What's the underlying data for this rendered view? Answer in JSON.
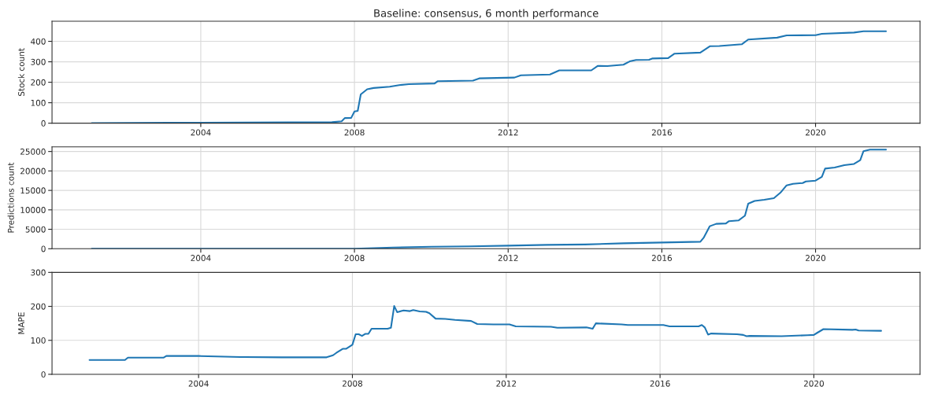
{
  "chart_data": [
    {
      "type": "line",
      "title": "Baseline: consensus, 6 month performance",
      "ylabel": "Stock count",
      "grid": true,
      "xlim": [
        "2000-02-17",
        "2022-09-20"
      ],
      "xticks": [
        "2004",
        "2008",
        "2012",
        "2016",
        "2020"
      ],
      "ylim": [
        0,
        498
      ],
      "yticks": [
        0,
        100,
        200,
        300,
        400
      ],
      "series": [
        {
          "color": "#1f77b4",
          "x": [
            "2001-03",
            "2003-03",
            "2007-06",
            "2007-09",
            "2007-10",
            "2007-12",
            "2008-01",
            "2008-02",
            "2008-03",
            "2008-05",
            "2008-07",
            "2008-12",
            "2009-03",
            "2009-06",
            "2010-02",
            "2010-03",
            "2011-02",
            "2011-04",
            "2012-03",
            "2012-05",
            "2013-02",
            "2013-05",
            "2014-03",
            "2014-05",
            "2014-08",
            "2015-01",
            "2015-03",
            "2015-05",
            "2015-09",
            "2015-10",
            "2016-03",
            "2016-05",
            "2017-01",
            "2017-04",
            "2017-07",
            "2018-02",
            "2018-04",
            "2019-01",
            "2019-04",
            "2020-01",
            "2020-03",
            "2021-01",
            "2021-04",
            "2021-11"
          ],
          "values": [
            0,
            2,
            5,
            9,
            25,
            26,
            57,
            60,
            141,
            166,
            172,
            178,
            186,
            191,
            194,
            205,
            208,
            219,
            223,
            234,
            238,
            258,
            258,
            280,
            279,
            286,
            302,
            309,
            310,
            316,
            318,
            340,
            345,
            376,
            377,
            386,
            409,
            418,
            429,
            430,
            437,
            443,
            449,
            449
          ]
        }
      ]
    },
    {
      "type": "line",
      "ylabel": "Predictions count",
      "grid": true,
      "xlim": [
        "2000-02-17",
        "2022-09-20"
      ],
      "xticks": [
        "2004",
        "2008",
        "2012",
        "2016",
        "2020"
      ],
      "ylim": [
        0,
        26200
      ],
      "yticks": [
        0,
        5000,
        10000,
        15000,
        20000,
        25000
      ],
      "series": [
        {
          "color": "#1f77b4",
          "x": [
            "2001-03",
            "2008-01",
            "2009-01",
            "2010-01",
            "2011-01",
            "2012-01",
            "2013-01",
            "2014-01",
            "2015-01",
            "2016-01",
            "2017-01",
            "2017-02",
            "2017-04",
            "2017-06",
            "2017-09",
            "2017-10",
            "2018-01",
            "2018-03",
            "2018-04",
            "2018-06",
            "2018-09",
            "2018-12",
            "2019-02",
            "2019-04",
            "2019-06",
            "2019-09",
            "2019-10",
            "2020-01",
            "2020-03",
            "2020-04",
            "2020-07",
            "2020-10",
            "2021-01",
            "2021-03",
            "2021-04",
            "2021-06",
            "2021-11"
          ],
          "values": [
            0,
            0,
            300,
            500,
            600,
            800,
            1000,
            1100,
            1400,
            1600,
            1800,
            2800,
            5800,
            6400,
            6500,
            7100,
            7300,
            8500,
            11600,
            12300,
            12600,
            13000,
            14400,
            16300,
            16700,
            16900,
            17300,
            17500,
            18500,
            20600,
            20900,
            21500,
            21800,
            22800,
            25100,
            25500,
            25500
          ]
        }
      ]
    },
    {
      "type": "line",
      "ylabel": "MAPE",
      "grid": true,
      "xlim": [
        "2000-03-10",
        "2022-10-05"
      ],
      "xticks": [
        "2004",
        "2008",
        "2012",
        "2016",
        "2020"
      ],
      "ylim": [
        0,
        300
      ],
      "yticks": [
        0,
        100,
        200,
        300
      ],
      "series": [
        {
          "color": "#1f77b4",
          "x": [
            "2001-03",
            "2002-02",
            "2002-03",
            "2003-02",
            "2003-03",
            "2004-01",
            "2005-02",
            "2005-03",
            "2006-03",
            "2007-05",
            "2007-07",
            "2007-08",
            "2007-10",
            "2007-11",
            "2008-01",
            "2008-02",
            "2008-03",
            "2008-04",
            "2008-05",
            "2008-06",
            "2008-07",
            "2008-12",
            "2009-01",
            "2009-02",
            "2009-03",
            "2009-05",
            "2009-07",
            "2009-08",
            "2009-10",
            "2009-12",
            "2010-01",
            "2010-03",
            "2010-06",
            "2010-09",
            "2011-02",
            "2011-04",
            "2011-09",
            "2012-02",
            "2012-04",
            "2013-03",
            "2013-05",
            "2014-02",
            "2014-04",
            "2014-05",
            "2015-01",
            "2015-03",
            "2016-02",
            "2016-04",
            "2017-01",
            "2017-02",
            "2017-03",
            "2017-04",
            "2017-05",
            "2018-01",
            "2018-03",
            "2018-04",
            "2018-05",
            "2019-03",
            "2019-11",
            "2020-01",
            "2020-02",
            "2020-04",
            "2021-01",
            "2021-02",
            "2021-03",
            "2021-10"
          ],
          "values": [
            42,
            42,
            49,
            49,
            54,
            54,
            51,
            51,
            50,
            50,
            56,
            63,
            75,
            75,
            87,
            118,
            118,
            113,
            119,
            119,
            134,
            134,
            137,
            201,
            183,
            188,
            186,
            189,
            185,
            184,
            180,
            164,
            163,
            160,
            157,
            148,
            147,
            147,
            141,
            140,
            137,
            138,
            134,
            150,
            147,
            145,
            145,
            141,
            141,
            145,
            138,
            117,
            120,
            118,
            116,
            112,
            113,
            112,
            115,
            116,
            122,
            133,
            131,
            132,
            129,
            128
          ]
        }
      ]
    }
  ]
}
